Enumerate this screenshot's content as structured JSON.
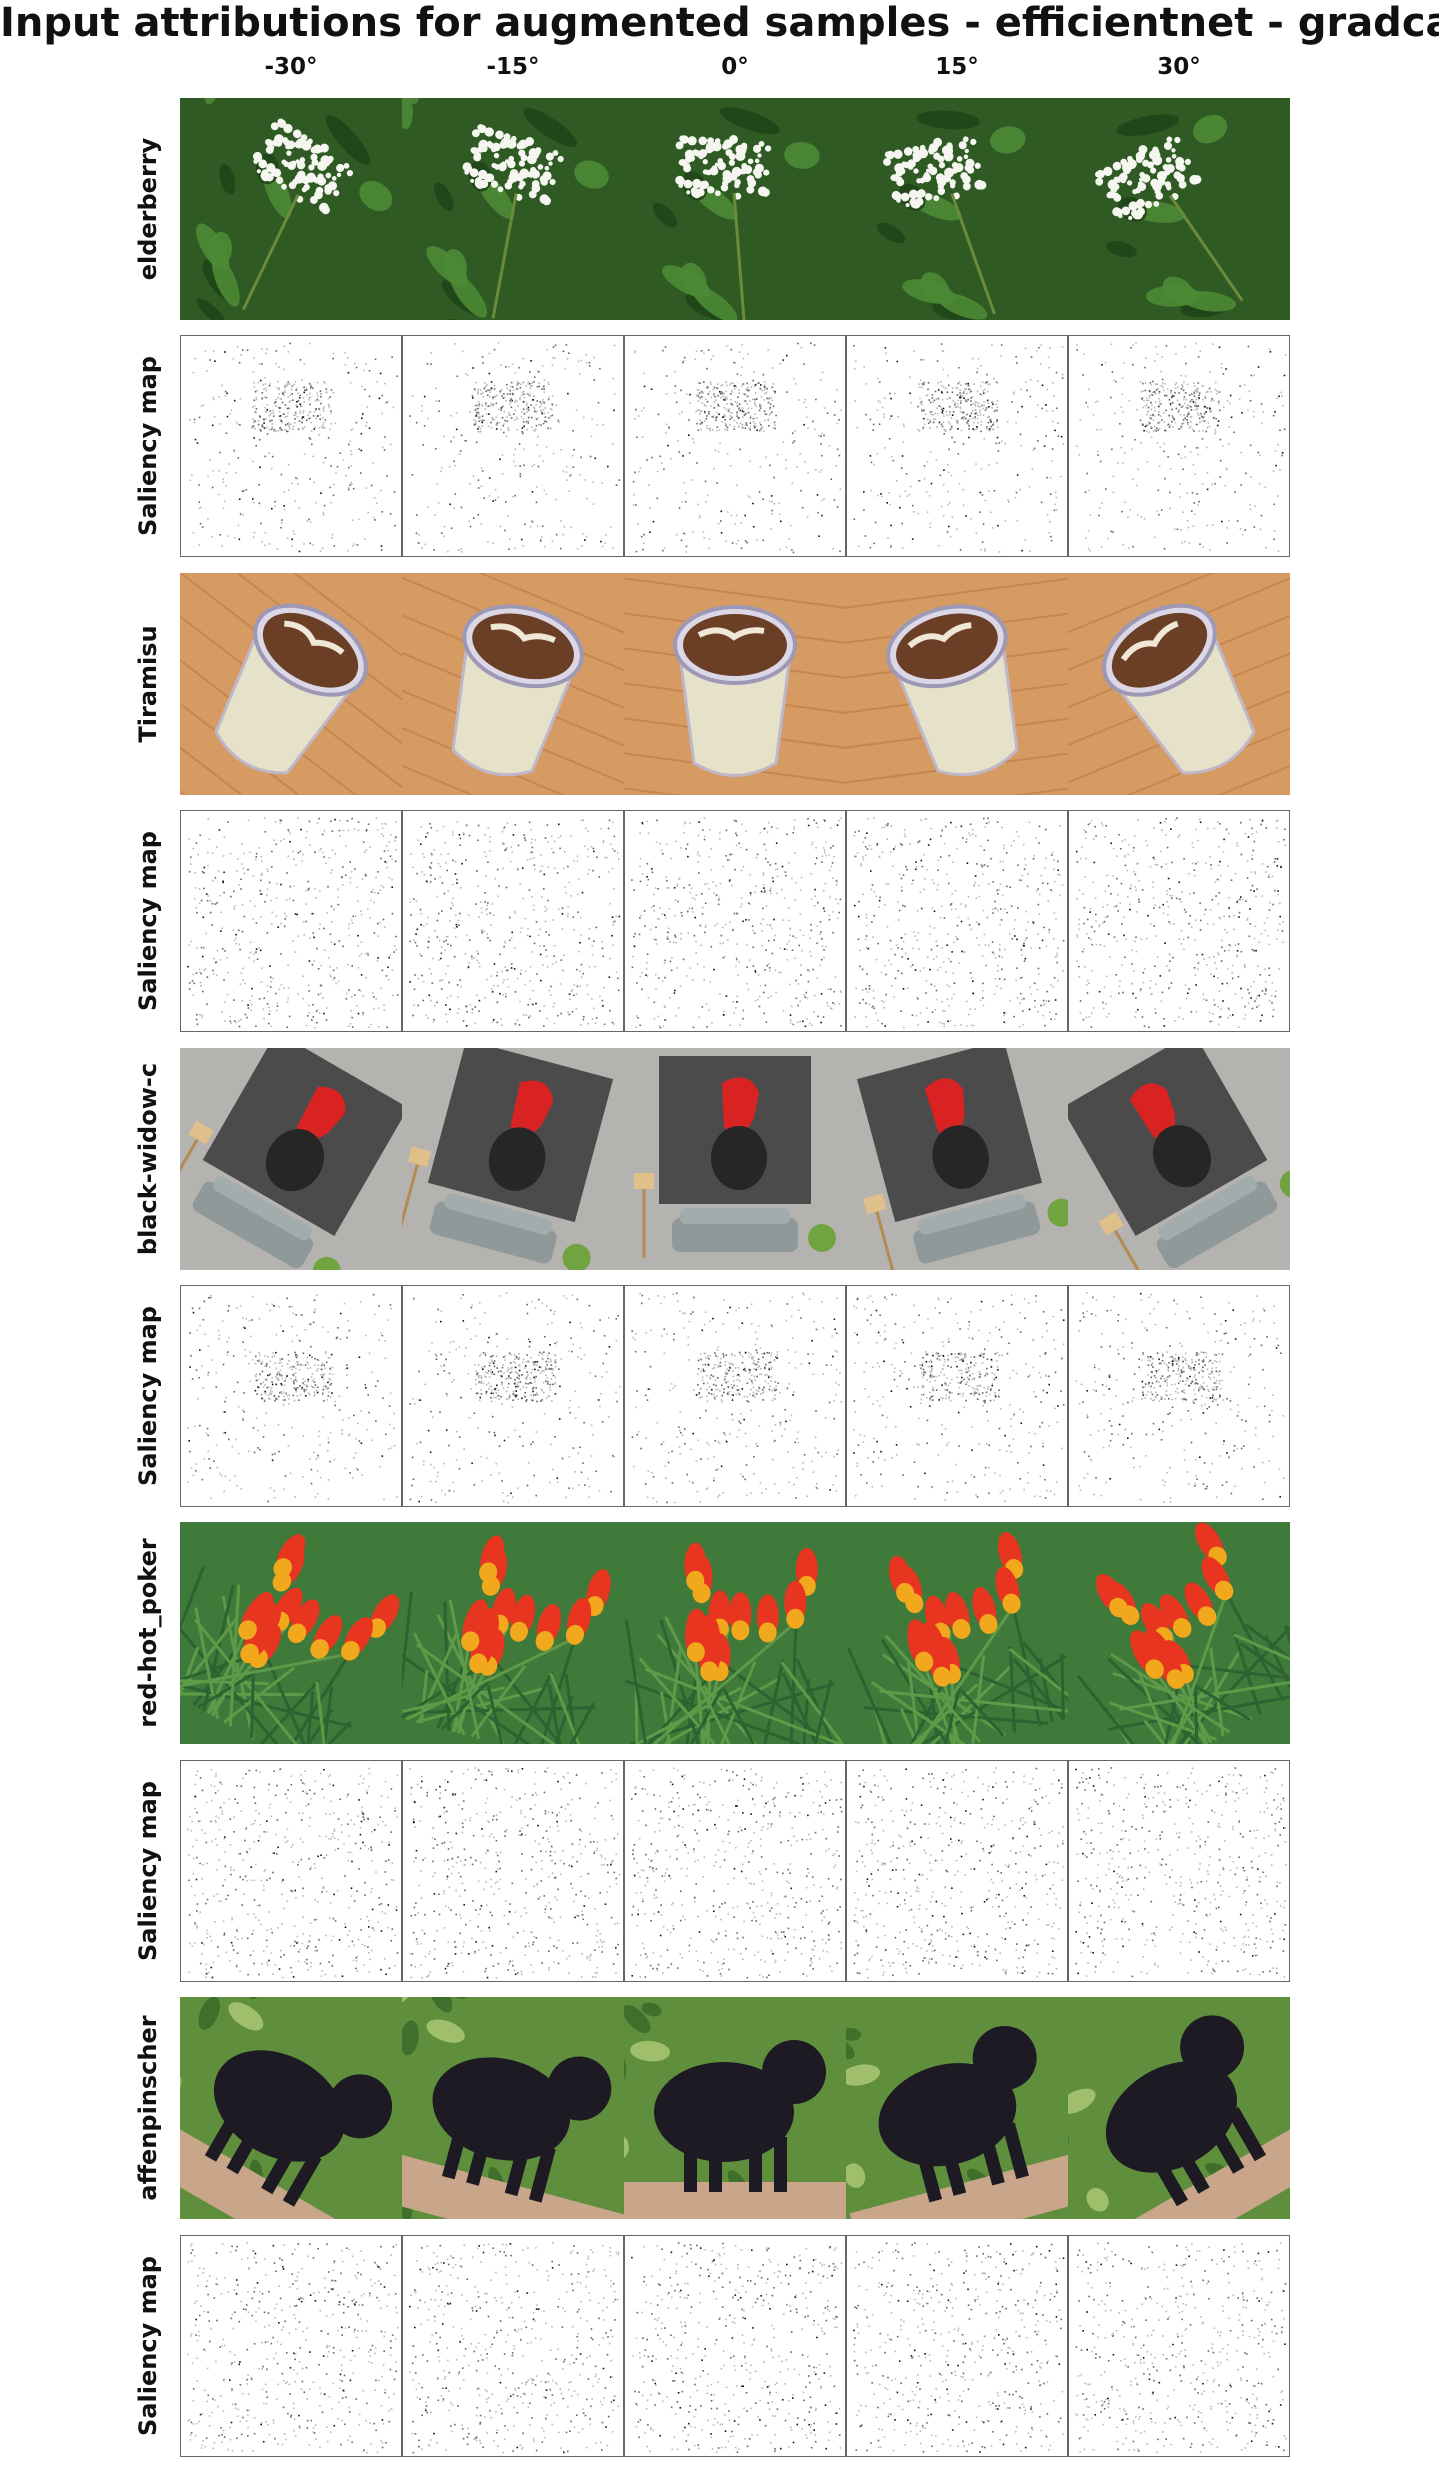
{
  "title": "Input attributions for augmented samples - efficientnet - gradcam",
  "columns": [
    "-30°",
    "-15°",
    "0°",
    "15°",
    "30°"
  ],
  "angles": [
    -30,
    -15,
    0,
    15,
    30
  ],
  "saliency_label": "Saliency map",
  "samples": [
    {
      "label": "elderberry",
      "scene": "elderberry-photo",
      "colors": {
        "bg": "#2f5a24",
        "accent": "#f4f6ef",
        "detail": "#4d8a35"
      }
    },
    {
      "label": "Tiramisu",
      "scene": "tiramisu-photo",
      "colors": {
        "bg": "#d69a63",
        "accent": "#6b3f26",
        "detail": "#e6e1c9"
      }
    },
    {
      "label": "black-widow-c",
      "scene": "black-widow-poster-photo",
      "colors": {
        "bg": "#b5b3af",
        "accent": "#d92323",
        "detail": "#4b4b4b"
      }
    },
    {
      "label": "red-hot_poker",
      "scene": "red-hot-poker-photo",
      "colors": {
        "bg": "#3f7a3a",
        "accent": "#e8351f",
        "detail": "#f2a81d"
      }
    },
    {
      "label": "affenpinscher",
      "scene": "affenpinscher-photo",
      "colors": {
        "bg": "#5f8f3d",
        "accent": "#1d1a24",
        "detail": "#9fbf6d"
      }
    }
  ]
}
